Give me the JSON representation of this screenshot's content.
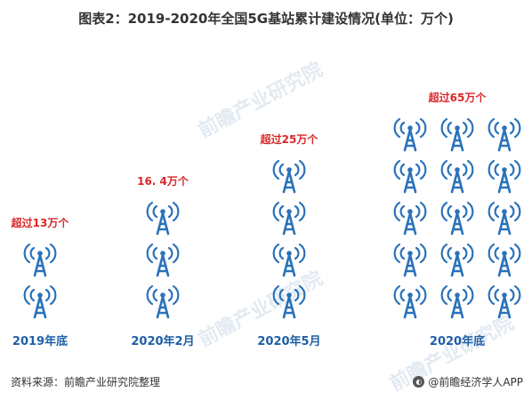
{
  "title": "图表2：2019-2020年全国5G基站累计建设情况(单位：万个)",
  "chart_data": {
    "type": "pictogram",
    "unit": "万个",
    "categories": [
      "2019年底",
      "2020年2月",
      "2020年5月",
      "2020年底"
    ],
    "values": [
      13,
      16.4,
      25,
      65
    ],
    "value_labels": [
      "超过13万个",
      "16. 4万个",
      "超过25万个",
      "超过65万个"
    ],
    "icon_counts": [
      2,
      3,
      4,
      15
    ],
    "icon": "cell-tower-icon",
    "colors": {
      "icon": "#2a72ba",
      "value_label": "#d8282a",
      "category_label": "#1f5fa6"
    }
  },
  "watermark": "前瞻产业研究院",
  "footer": {
    "source": "资料来源：前瞻产业研究院整理",
    "brand": "@前瞻经济学人APP"
  }
}
